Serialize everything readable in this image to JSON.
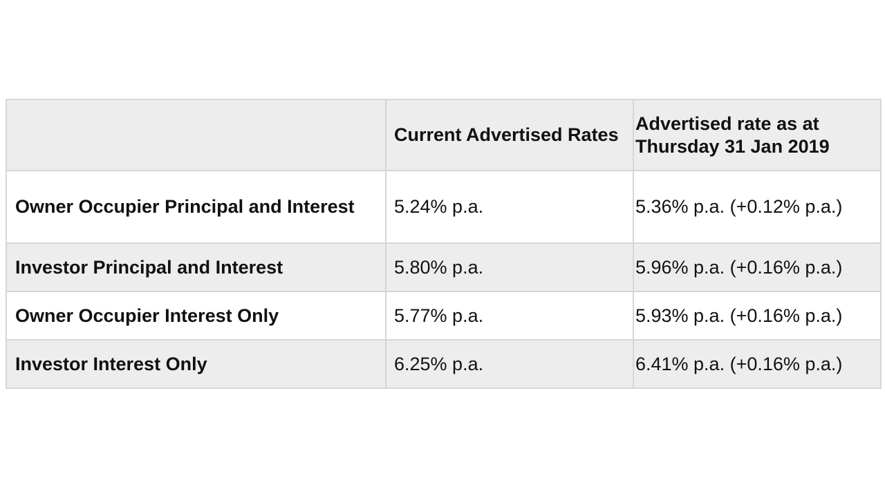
{
  "table": {
    "headers": [
      "",
      "Current Advertised Rates",
      "Advertised rate as at Thursday 31 Jan 2019"
    ],
    "rows": [
      {
        "label": "Owner Occupier Principal and Interest",
        "current": "5.24% p.a.",
        "previous": "5.36% p.a. (+0.12% p.a.)"
      },
      {
        "label": "Investor Principal and Interest",
        "current": "5.80% p.a.",
        "previous": "5.96% p.a. (+0.16% p.a.)"
      },
      {
        "label": "Owner Occupier Interest Only",
        "current": "5.77% p.a.",
        "previous": "5.93% p.a. (+0.16% p.a.)"
      },
      {
        "label": "Investor Interest Only",
        "current": "6.25% p.a.",
        "previous": "6.41% p.a. (+0.16% p.a.)"
      }
    ]
  },
  "colors": {
    "shaded_row": "#ededed",
    "border": "#d6d6d6",
    "text": "#111111"
  }
}
